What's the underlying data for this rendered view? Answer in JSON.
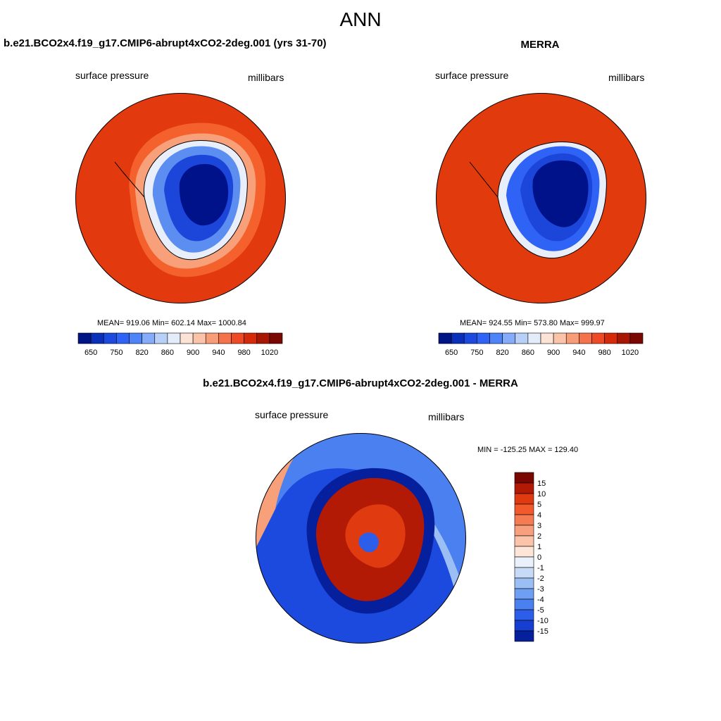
{
  "title": "ANN",
  "panels": [
    {
      "case_name": "b.e21.BCO2x4.f19_g17.CMIP6-abrupt4xCO2-2deg.001 (yrs 31-70)",
      "left_label": "surface pressure",
      "right_label": "millibars",
      "stats": "MEAN= 919.06  Min= 602.14  Max= 1000.84",
      "colorbar": {
        "colors": [
          "#001585",
          "#0a2fb8",
          "#1c4ade",
          "#2f63f5",
          "#4d84f7",
          "#86abf8",
          "#b8d0f7",
          "#e3ecf9",
          "#fde3d5",
          "#fbc4a9",
          "#f89d77",
          "#f4734b",
          "#ee4a25",
          "#d52b0a",
          "#a81704",
          "#7a0702"
        ],
        "tick_labels": [
          "650",
          "750",
          "820",
          "860",
          "900",
          "940",
          "980",
          "1020"
        ]
      }
    },
    {
      "case_name": "MERRA",
      "left_label": "surface pressure",
      "right_label": "millibars",
      "stats": "MEAN= 924.55  Min= 573.80  Max= 999.97",
      "colorbar": {
        "colors": [
          "#001585",
          "#0a2fb8",
          "#1c4ade",
          "#2f63f5",
          "#4d84f7",
          "#86abf8",
          "#b8d0f7",
          "#e3ecf9",
          "#fde3d5",
          "#fbc4a9",
          "#f89d77",
          "#f4734b",
          "#ee4a25",
          "#d52b0a",
          "#a81704",
          "#7a0702"
        ],
        "tick_labels": [
          "650",
          "750",
          "820",
          "860",
          "900",
          "940",
          "980",
          "1020"
        ]
      }
    }
  ],
  "diff": {
    "case_name": "b.e21.BCO2x4.f19_g17.CMIP6-abrupt4xCO2-2deg.001 - MERRA",
    "left_label": "surface pressure",
    "right_label": "millibars",
    "stats": "MIN = -125.25 MAX = 129.40",
    "colorbar": {
      "colors": [
        "#7a0702",
        "#b31a05",
        "#e03b10",
        "#f25a2c",
        "#f57c52",
        "#f89f7e",
        "#fbc3a9",
        "#fde6d8",
        "#eaf1fb",
        "#c7dbf7",
        "#9bbff5",
        "#6f9ff2",
        "#4a80ef",
        "#2c5eea",
        "#163fd2",
        "#061f9c"
      ],
      "tick_labels": [
        "15",
        "10",
        "5",
        "4",
        "3",
        "2",
        "1",
        "0",
        "-1",
        "-2",
        "-3",
        "-4",
        "-5",
        "-10",
        "-15"
      ]
    }
  },
  "colors": {
    "ocean_model": "#e23a0e",
    "ocean_ring": "#f4612c",
    "ocean_merra": "#e13a0c",
    "ice_dark": "#00128a",
    "ice_mid": "#1c45da",
    "ice_light": "#5c8ef2",
    "diff_ocean": "#1c4ade"
  }
}
